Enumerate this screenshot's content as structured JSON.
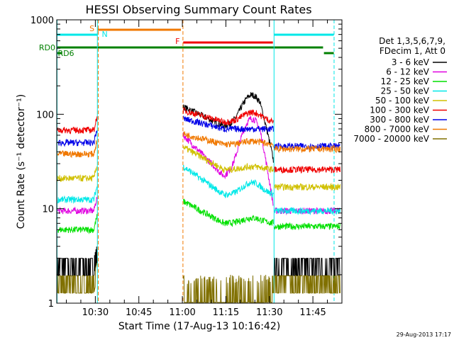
{
  "chart_data": {
    "type": "line",
    "title": "HESSI Observing Summary Count Rates",
    "xlabel": "Start Time (17-Aug-13 10:16:42)",
    "ylabel": "Count Rate (s⁻¹ detector⁻¹)",
    "yscale": "log",
    "ylim": [
      1,
      1000
    ],
    "xlim_minutes": [
      616.7,
      715.0
    ],
    "y_ticks": [
      {
        "value": 1,
        "label": "1"
      },
      {
        "value": 10,
        "label": "10"
      },
      {
        "value": 100,
        "label": "100"
      },
      {
        "value": 1000,
        "label": "1000"
      }
    ],
    "x_ticks": [
      {
        "minute": 630,
        "label": "10:30"
      },
      {
        "minute": 645,
        "label": "10:45"
      },
      {
        "minute": 660,
        "label": "11:00"
      },
      {
        "minute": 675,
        "label": "11:15"
      },
      {
        "minute": 690,
        "label": "11:30"
      },
      {
        "minute": 705,
        "label": "11:45"
      }
    ],
    "legend_header": [
      "Det 1,3,5,6,7,9,",
      "FDecim 1, Att 0"
    ],
    "series": [
      {
        "name": "3 - 6 keV",
        "color": "#000000",
        "base": [
          2.6,
          2.6,
          120,
          75,
          160,
          2.6
        ]
      },
      {
        "name": "6 - 12 keV",
        "color": "#e000e0",
        "base": [
          9.5,
          9.5,
          60,
          22,
          90,
          9.5
        ]
      },
      {
        "name": "12 - 25 keV",
        "color": "#00e000",
        "base": [
          6.0,
          6.0,
          12,
          7,
          8,
          6.5
        ]
      },
      {
        "name": "25 - 50 keV",
        "color": "#00e8e8",
        "base": [
          12.5,
          12.5,
          28,
          14,
          19,
          9.5
        ]
      },
      {
        "name": "50 - 100 keV",
        "color": "#d0c000",
        "base": [
          21,
          21,
          45,
          26,
          28,
          17
        ]
      },
      {
        "name": "100 - 300 keV",
        "color": "#f00000",
        "base": [
          68,
          68,
          110,
          83,
          105,
          26
        ]
      },
      {
        "name": "300 - 800 keV",
        "color": "#0000e8",
        "base": [
          50,
          50,
          90,
          70,
          70,
          46
        ]
      },
      {
        "name": "800 - 7000 keV",
        "color": "#f07800",
        "base": [
          38,
          38,
          62,
          48,
          52,
          43
        ]
      },
      {
        "name": "7000 - 20000 keV",
        "color": "#807000",
        "base": [
          1.7,
          1.7,
          1.7,
          1.7,
          1.7,
          1.7
        ]
      }
    ],
    "annotations": [
      {
        "text": "S",
        "color": "#f07800"
      },
      {
        "text": "N",
        "color": "#00e8e8"
      },
      {
        "text": "F",
        "color": "#f00000"
      },
      {
        "text": "RD0",
        "color": "#008000"
      },
      {
        "text": "RD6",
        "color": "#008000"
      }
    ],
    "flags": [
      {
        "name": "SAA",
        "color": "#f07800",
        "start": 630.8,
        "end": 659.5
      },
      {
        "name": "Night",
        "color": "#00e8e8",
        "start": 616.7,
        "end": 630.8
      },
      {
        "name": "Night2",
        "color": "#00e8e8",
        "start": 691.6,
        "end": 712.2
      },
      {
        "name": "Flare",
        "color": "#f00000",
        "start": 660.3,
        "end": 691.2
      },
      {
        "name": "RD0",
        "color": "#008000",
        "start": 616.7,
        "end": 708.5
      },
      {
        "name": "RD6a",
        "color": "#008000",
        "start": 616.7,
        "end": 618.6
      },
      {
        "name": "RD6b",
        "color": "#008000",
        "start": 708.8,
        "end": 712.2
      }
    ],
    "vertical_lines": [
      {
        "minute": 616.8,
        "color": "#00e8e8",
        "style": "solid"
      },
      {
        "minute": 630.7,
        "color": "#00e8e8",
        "style": "solid"
      },
      {
        "minute": 631.0,
        "color": "#f07800",
        "style": "dashed"
      },
      {
        "minute": 660.2,
        "color": "#f07800",
        "style": "dashed"
      },
      {
        "minute": 691.6,
        "color": "#00e8e8",
        "style": "solid"
      },
      {
        "minute": 712.3,
        "color": "#00e8e8",
        "style": "dashed"
      }
    ]
  },
  "footer_date": "29-Aug-2013 17:17"
}
